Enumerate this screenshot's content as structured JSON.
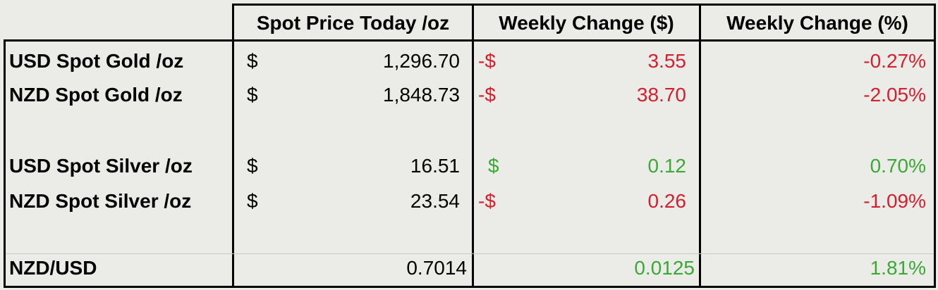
{
  "table": {
    "header": [
      "Spot Price Today /oz",
      "Weekly Change ($)",
      "Weekly Change (%)"
    ],
    "rows": [
      {
        "label": "USD Spot Gold /oz",
        "price_symbol": "$",
        "price": "1,296.70",
        "change_symbol": "-$",
        "change": "3.55",
        "percent": "-0.27%",
        "color": "#d3202e"
      },
      {
        "label": "NZD Spot Gold /oz",
        "price_symbol": "$",
        "price": "1,848.73",
        "change_symbol": "-$",
        "change": "38.70",
        "percent": "-2.05%",
        "color": "#d3202e"
      },
      {
        "label": "USD Spot Silver /oz",
        "price_symbol": "$",
        "price": "16.51",
        "change_symbol": "$",
        "change": "0.12",
        "percent": "0.70%",
        "color": "#3aa935"
      },
      {
        "label": "NZD Spot Silver /oz",
        "price_symbol": "$",
        "price": "23.54",
        "change_symbol": "-$",
        "change": "0.26",
        "percent": "-1.09%",
        "color": "#d3202e"
      },
      {
        "label": "NZD/USD",
        "price": "0.7014",
        "change": "0.0125",
        "percent": "1.81%",
        "color": "#3aa935"
      }
    ]
  }
}
